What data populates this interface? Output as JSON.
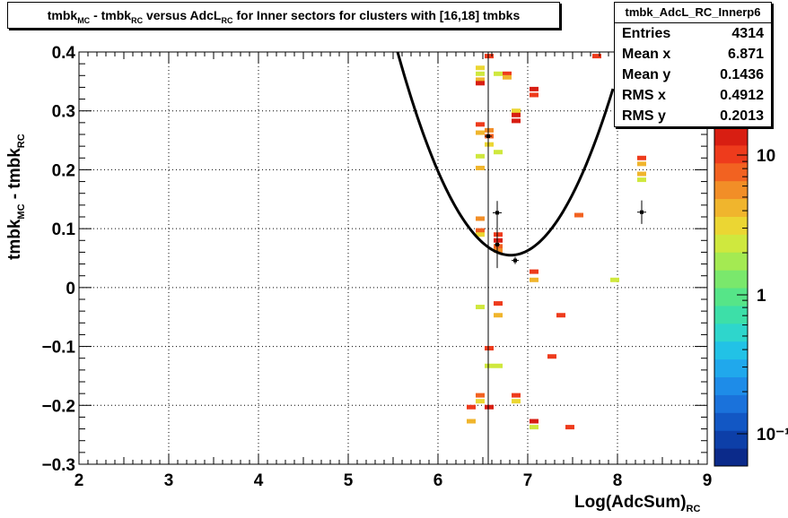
{
  "title": {
    "part1": "tmbk",
    "sub1": "MC",
    "part2": " - tmbk",
    "sub2": "RC",
    "part3": " versus AdcL",
    "sub3": "RC",
    "part4": " for Inner sectors for clusters with [16,18] tmbks"
  },
  "stats": {
    "name": "tmbk_AdcL_RC_Innerp6",
    "rows": [
      {
        "label": "Entries",
        "value": "4314"
      },
      {
        "label": "Mean x",
        "value": "6.871"
      },
      {
        "label": "Mean y",
        "value": "0.1436"
      },
      {
        "label": "RMS x",
        "value": "0.4912"
      },
      {
        "label": "RMS y",
        "value": "0.2013"
      }
    ]
  },
  "axis": {
    "ylabel_a": "tmbk",
    "ylabel_sub_a": "MC",
    "ylabel_b": " - tmbk",
    "ylabel_sub_b": "RC",
    "xlabel": "Log(AdcSum)",
    "xlabel_sub": "RC"
  },
  "chart_data": {
    "type": "heatmap",
    "xlim": [
      2,
      9
    ],
    "ylim": [
      -0.3,
      0.4
    ],
    "xticks": [
      "2",
      "3",
      "4",
      "5",
      "6",
      "7",
      "8",
      "9"
    ],
    "yticks": [
      "−0.3",
      "−0.2",
      "−0.1",
      "0",
      "0.1",
      "0.2",
      "0.3",
      "0.4"
    ],
    "zscale": "log",
    "zticks": [
      "10⁻¹",
      "1",
      "10"
    ],
    "grid": true,
    "vertical_line_x": 6.56,
    "palette": [
      "#0b2a8a",
      "#0d3fa8",
      "#1257c4",
      "#1a72db",
      "#1e8ce8",
      "#20a8ec",
      "#22c2e6",
      "#2ed6cc",
      "#3ddfa8",
      "#56e588",
      "#7ae86c",
      "#a4ea52",
      "#cfe83e",
      "#ebd633",
      "#f0b52d",
      "#f28e27",
      "#f26221",
      "#ee3b1c",
      "#d81e12"
    ],
    "cells": [
      {
        "x": 6.47,
        "y": 0.373,
        "c": 13
      },
      {
        "x": 6.47,
        "y": 0.363,
        "c": 12
      },
      {
        "x": 6.47,
        "y": 0.353,
        "c": 14
      },
      {
        "x": 6.47,
        "y": 0.347,
        "c": 18
      },
      {
        "x": 6.47,
        "y": 0.277,
        "c": 17
      },
      {
        "x": 6.47,
        "y": 0.263,
        "c": 14
      },
      {
        "x": 6.47,
        "y": 0.223,
        "c": 12
      },
      {
        "x": 6.47,
        "y": 0.203,
        "c": 14
      },
      {
        "x": 6.47,
        "y": 0.117,
        "c": 15
      },
      {
        "x": 6.47,
        "y": 0.097,
        "c": 16
      },
      {
        "x": 6.47,
        "y": 0.09,
        "c": 13
      },
      {
        "x": 6.47,
        "y": -0.033,
        "c": 12
      },
      {
        "x": 6.47,
        "y": -0.183,
        "c": 16
      },
      {
        "x": 6.47,
        "y": -0.193,
        "c": 13
      },
      {
        "x": 6.37,
        "y": -0.203,
        "c": 17
      },
      {
        "x": 6.37,
        "y": -0.227,
        "c": 14
      },
      {
        "x": 6.57,
        "y": 0.393,
        "c": 17
      },
      {
        "x": 6.57,
        "y": 0.267,
        "c": 15
      },
      {
        "x": 6.57,
        "y": 0.257,
        "c": 16
      },
      {
        "x": 6.57,
        "y": 0.243,
        "c": 13
      },
      {
        "x": 6.57,
        "y": -0.103,
        "c": 17
      },
      {
        "x": 6.57,
        "y": -0.133,
        "c": 12
      },
      {
        "x": 6.57,
        "y": -0.203,
        "c": 18
      },
      {
        "x": 6.67,
        "y": 0.363,
        "c": 12
      },
      {
        "x": 6.67,
        "y": 0.23,
        "c": 12
      },
      {
        "x": 6.67,
        "y": 0.09,
        "c": 17
      },
      {
        "x": 6.67,
        "y": 0.08,
        "c": 18
      },
      {
        "x": 6.67,
        "y": 0.07,
        "c": 16
      },
      {
        "x": 6.67,
        "y": 0.063,
        "c": 15
      },
      {
        "x": 6.67,
        "y": -0.027,
        "c": 17
      },
      {
        "x": 6.67,
        "y": -0.047,
        "c": 14
      },
      {
        "x": 6.67,
        "y": -0.133,
        "c": 12
      },
      {
        "x": 6.77,
        "y": 0.363,
        "c": 17
      },
      {
        "x": 6.77,
        "y": 0.357,
        "c": 14
      },
      {
        "x": 6.87,
        "y": 0.3,
        "c": 13
      },
      {
        "x": 6.87,
        "y": 0.293,
        "c": 18
      },
      {
        "x": 6.87,
        "y": 0.283,
        "c": 18
      },
      {
        "x": 6.87,
        "y": -0.183,
        "c": 17
      },
      {
        "x": 6.87,
        "y": -0.193,
        "c": 13
      },
      {
        "x": 7.07,
        "y": 0.337,
        "c": 18
      },
      {
        "x": 7.07,
        "y": 0.327,
        "c": 17
      },
      {
        "x": 7.07,
        "y": 0.027,
        "c": 17
      },
      {
        "x": 7.07,
        "y": 0.013,
        "c": 14
      },
      {
        "x": 7.07,
        "y": -0.227,
        "c": 18
      },
      {
        "x": 7.07,
        "y": -0.237,
        "c": 12
      },
      {
        "x": 7.27,
        "y": -0.117,
        "c": 17
      },
      {
        "x": 7.37,
        "y": -0.047,
        "c": 17
      },
      {
        "x": 7.47,
        "y": -0.237,
        "c": 17
      },
      {
        "x": 7.57,
        "y": 0.123,
        "c": 16
      },
      {
        "x": 7.77,
        "y": 0.393,
        "c": 17
      },
      {
        "x": 7.97,
        "y": 0.013,
        "c": 12
      },
      {
        "x": 8.27,
        "y": 0.22,
        "c": 17
      },
      {
        "x": 8.27,
        "y": 0.21,
        "c": 14
      },
      {
        "x": 8.27,
        "y": 0.193,
        "c": 14
      },
      {
        "x": 8.27,
        "y": 0.183,
        "c": 12
      }
    ],
    "profile_points": [
      {
        "x": 6.56,
        "y": 0.257,
        "ey": 0.012,
        "ex": 0.04
      },
      {
        "x": 6.66,
        "y": 0.127,
        "ey": 0.02,
        "ex": 0.05
      },
      {
        "x": 6.66,
        "y": 0.073,
        "ey": 0.04,
        "ex": 0.03
      },
      {
        "x": 6.86,
        "y": 0.046,
        "ey": 0.006,
        "ex": 0.04
      },
      {
        "x": 8.27,
        "y": 0.128,
        "ey": 0.02,
        "ex": 0.05
      }
    ],
    "fit_curve": {
      "x_from": 5.55,
      "x_to": 7.95,
      "vertex_x": 6.81,
      "vertex_y": 0.055
    }
  }
}
